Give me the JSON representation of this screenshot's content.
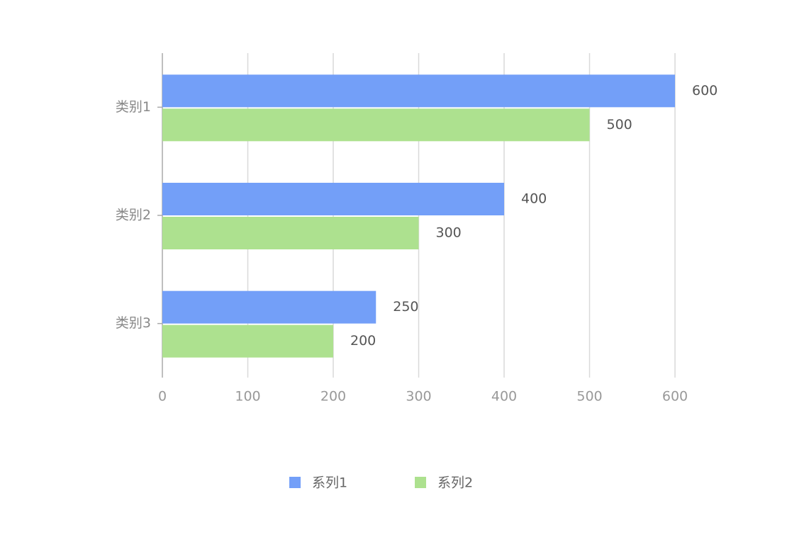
{
  "chart_data": {
    "type": "bar",
    "orientation": "horizontal",
    "categories": [
      "类别1",
      "类别2",
      "类别3"
    ],
    "series": [
      {
        "name": "系列1",
        "color": "#739ff8",
        "values": [
          600,
          400,
          250
        ]
      },
      {
        "name": "系列2",
        "color": "#ade18f",
        "values": [
          500,
          300,
          200
        ]
      }
    ],
    "xlim": [
      0,
      600
    ],
    "xticks": [
      0,
      100,
      200,
      300,
      400,
      500,
      600
    ],
    "grid": true,
    "legend": "bottom"
  }
}
